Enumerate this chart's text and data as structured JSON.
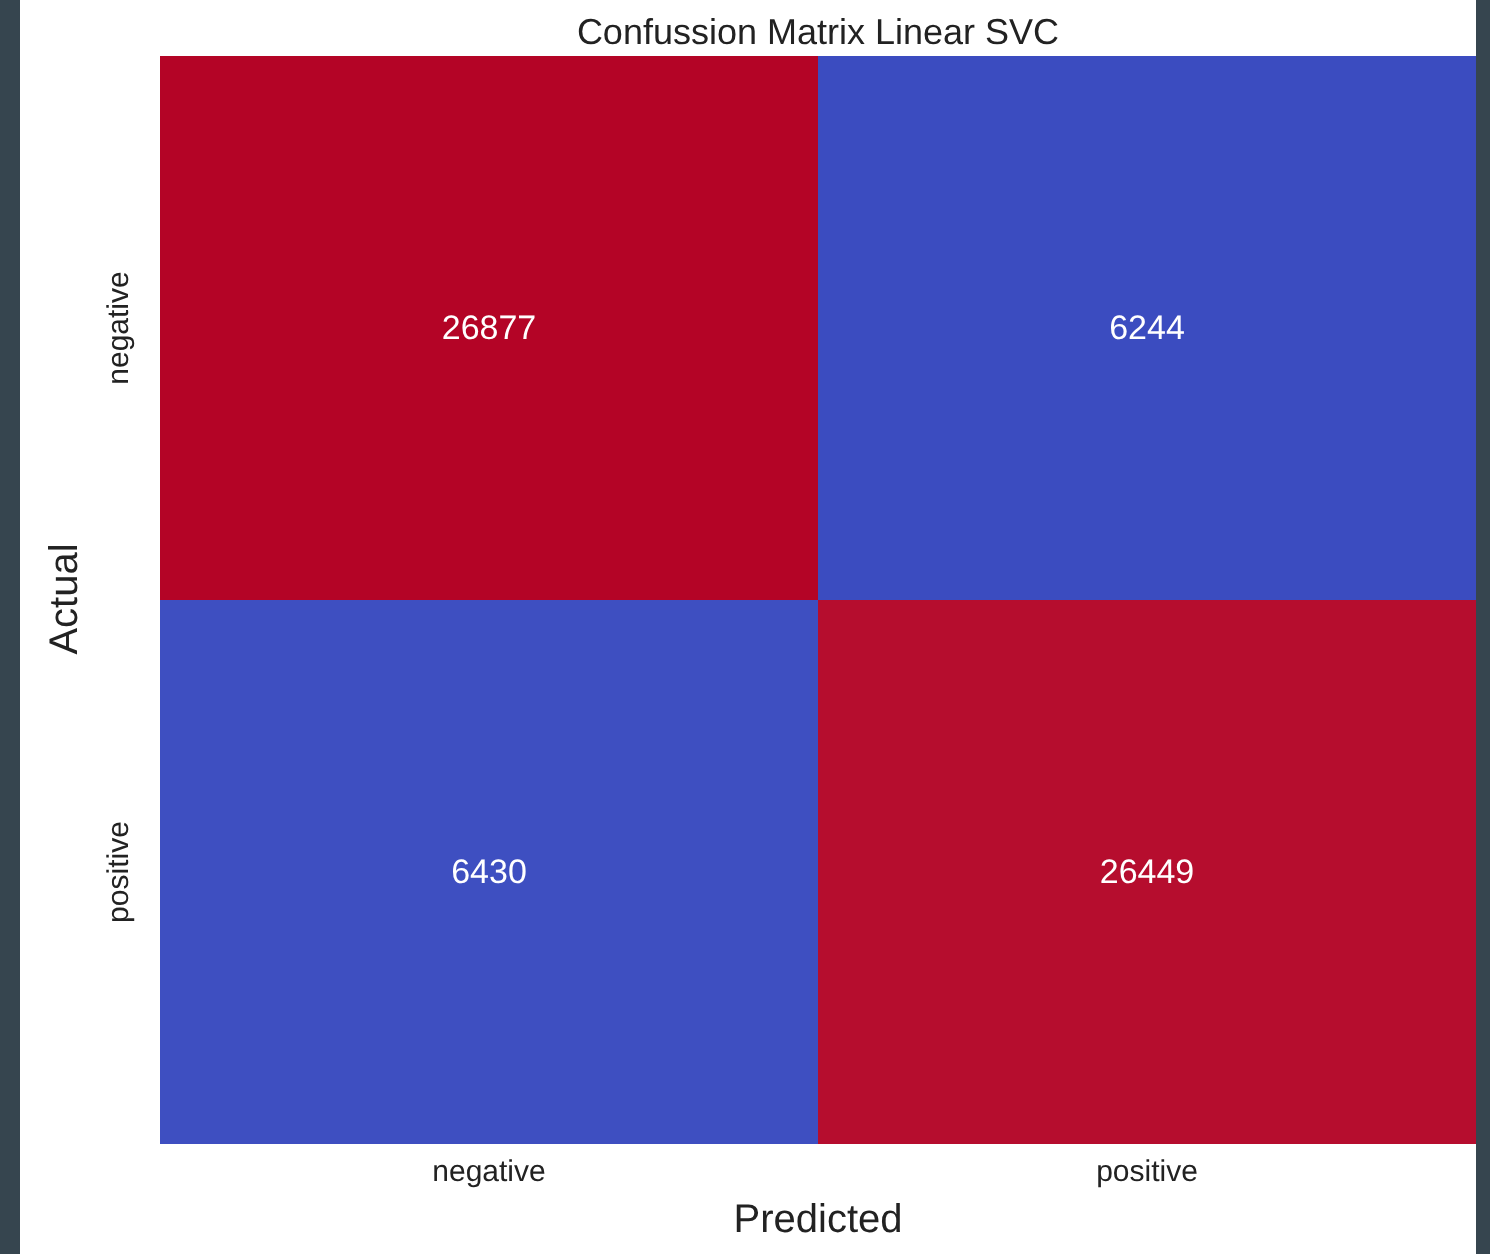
{
  "chart_data": {
    "type": "heatmap",
    "title": "Confussion Matrix Linear SVC",
    "xlabel": "Predicted",
    "ylabel": "Actual",
    "categories": [
      "negative",
      "positive"
    ],
    "y_categories": [
      "negative",
      "positive"
    ],
    "cells": [
      [
        26877,
        6244
      ],
      [
        6430,
        26449
      ]
    ],
    "data_labels": true
  }
}
